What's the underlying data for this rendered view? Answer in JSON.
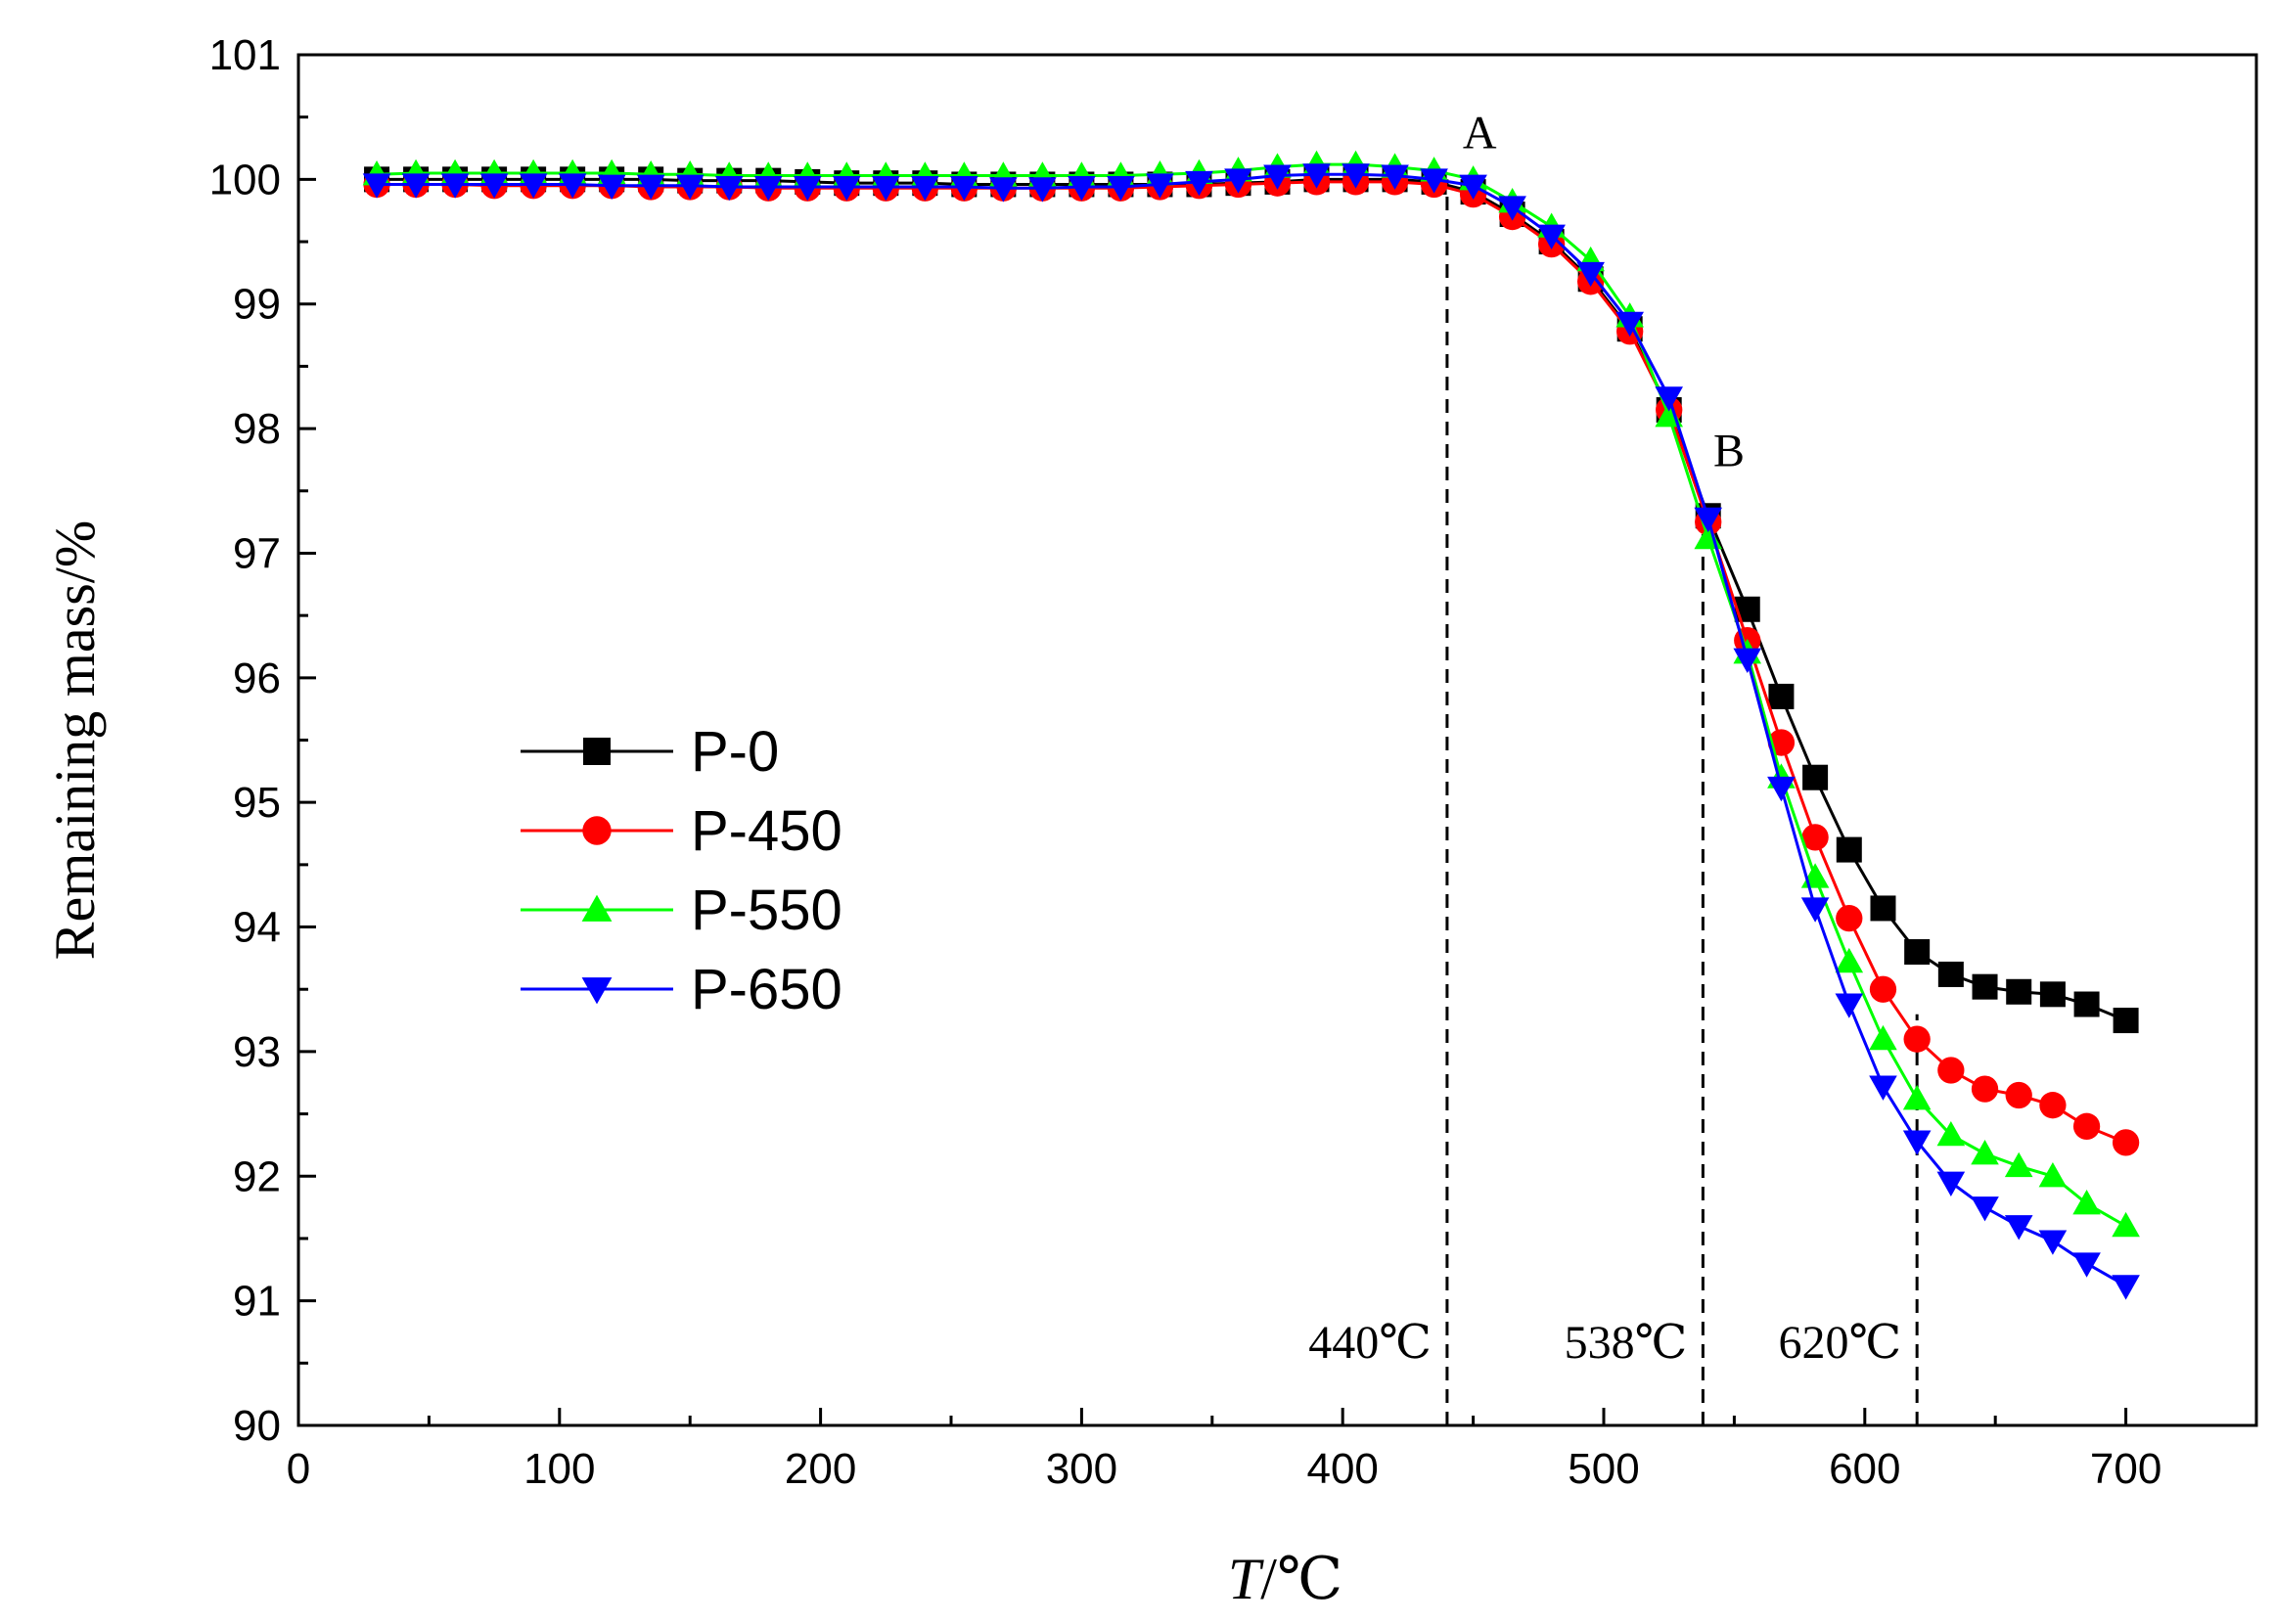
{
  "chart_data": {
    "type": "line",
    "xlabel": "T/℃",
    "xlabel_italic": "T",
    "xlabel_unit": "/℃",
    "ylabel": "Remaining mass/%",
    "xlim": [
      0,
      750
    ],
    "ylim": [
      90,
      101
    ],
    "xticks": [
      0,
      100,
      200,
      300,
      400,
      500,
      600,
      700
    ],
    "yticks": [
      90,
      91,
      92,
      93,
      94,
      95,
      96,
      97,
      98,
      99,
      100,
      101
    ],
    "legend_position": "center-left",
    "vlines": [
      {
        "x": 440,
        "label": "440℃",
        "top_y": 100.0
      },
      {
        "x": 538,
        "label": "538℃",
        "top_y": 97.3
      },
      {
        "x": 620,
        "label": "620℃",
        "top_y": 93.3
      }
    ],
    "point_annotations": [
      {
        "text": "A",
        "x": 446,
        "y": 100.25
      },
      {
        "text": "B",
        "x": 542,
        "y": 97.7
      }
    ],
    "x": [
      30,
      43,
      56,
      69,
      82,
      95,
      108,
      121,
      134,
      147,
      160,
      173,
      186,
      199,
      212,
      225,
      238,
      251,
      264,
      277,
      290,
      303,
      316,
      329,
      342,
      355,
      368,
      381,
      394,
      407,
      420,
      433,
      446,
      459,
      472,
      485,
      498,
      511,
      524,
      537,
      550,
      563,
      576,
      589,
      602,
      615,
      628,
      641,
      654,
      667,
      680,
      693
    ],
    "series": [
      {
        "name": "P-0",
        "color": "#000000",
        "marker": "square",
        "x": [
          30,
          45,
          60,
          75,
          90,
          105,
          120,
          135,
          150,
          165,
          180,
          195,
          210,
          225,
          240,
          255,
          270,
          285,
          300,
          315,
          330,
          345,
          360,
          375,
          390,
          405,
          420,
          435,
          450,
          465,
          480,
          495,
          510,
          525,
          540,
          555,
          568,
          581,
          594,
          607,
          620,
          633,
          646,
          659,
          672,
          685,
          700
        ],
        "values": [
          100.0,
          100.0,
          100.0,
          100.0,
          100.0,
          100.0,
          100.0,
          100.0,
          99.99,
          99.99,
          99.99,
          99.98,
          99.97,
          99.97,
          99.97,
          99.96,
          99.96,
          99.96,
          99.96,
          99.96,
          99.96,
          99.96,
          99.97,
          99.98,
          100.0,
          100.0,
          100.0,
          99.98,
          99.9,
          99.72,
          99.5,
          99.2,
          98.8,
          98.15,
          97.3,
          96.55,
          95.85,
          95.2,
          94.62,
          94.15,
          93.8,
          93.62,
          93.52,
          93.48,
          93.46,
          93.38,
          93.25
        ]
      },
      {
        "name": "P-450",
        "color": "#ff0000",
        "marker": "circle",
        "x": [
          30,
          45,
          60,
          75,
          90,
          105,
          120,
          135,
          150,
          165,
          180,
          195,
          210,
          225,
          240,
          255,
          270,
          285,
          300,
          315,
          330,
          345,
          360,
          375,
          390,
          405,
          420,
          435,
          450,
          465,
          480,
          495,
          510,
          525,
          540,
          555,
          568,
          581,
          594,
          607,
          620,
          633,
          646,
          659,
          672,
          685,
          700
        ],
        "values": [
          99.96,
          99.96,
          99.96,
          99.95,
          99.95,
          99.95,
          99.95,
          99.94,
          99.94,
          99.94,
          99.93,
          99.93,
          99.93,
          99.93,
          99.93,
          99.93,
          99.93,
          99.93,
          99.93,
          99.93,
          99.94,
          99.95,
          99.96,
          99.97,
          99.98,
          99.98,
          99.98,
          99.96,
          99.88,
          99.7,
          99.48,
          99.18,
          98.78,
          98.15,
          97.25,
          96.3,
          95.48,
          94.72,
          94.07,
          93.5,
          93.1,
          92.85,
          92.7,
          92.65,
          92.57,
          92.4,
          92.27
        ]
      },
      {
        "name": "P-550",
        "color": "#00ff00",
        "marker": "triangle-up",
        "x": [
          30,
          45,
          60,
          75,
          90,
          105,
          120,
          135,
          150,
          165,
          180,
          195,
          210,
          225,
          240,
          255,
          270,
          285,
          300,
          315,
          330,
          345,
          360,
          375,
          390,
          405,
          420,
          435,
          450,
          465,
          480,
          495,
          510,
          525,
          540,
          555,
          568,
          581,
          594,
          607,
          620,
          633,
          646,
          659,
          672,
          685,
          700
        ],
        "values": [
          100.04,
          100.05,
          100.05,
          100.05,
          100.05,
          100.05,
          100.05,
          100.04,
          100.04,
          100.03,
          100.03,
          100.03,
          100.03,
          100.03,
          100.03,
          100.03,
          100.03,
          100.03,
          100.03,
          100.03,
          100.04,
          100.05,
          100.07,
          100.1,
          100.12,
          100.12,
          100.1,
          100.07,
          100.0,
          99.82,
          99.62,
          99.35,
          98.9,
          98.1,
          97.12,
          96.2,
          95.2,
          94.4,
          93.72,
          93.1,
          92.62,
          92.33,
          92.18,
          92.08,
          92.0,
          91.78,
          91.6
        ]
      },
      {
        "name": "P-650",
        "color": "#0000ff",
        "marker": "triangle-down",
        "x": [
          30,
          45,
          60,
          75,
          90,
          105,
          120,
          135,
          150,
          165,
          180,
          195,
          210,
          225,
          240,
          255,
          270,
          285,
          300,
          315,
          330,
          345,
          360,
          375,
          390,
          405,
          420,
          435,
          450,
          465,
          480,
          495,
          510,
          525,
          540,
          555,
          568,
          581,
          594,
          607,
          620,
          633,
          646,
          659,
          672,
          685,
          700
        ],
        "values": [
          99.96,
          99.96,
          99.96,
          99.96,
          99.96,
          99.96,
          99.95,
          99.95,
          99.95,
          99.94,
          99.94,
          99.94,
          99.94,
          99.94,
          99.94,
          99.94,
          99.93,
          99.93,
          99.94,
          99.94,
          99.96,
          99.98,
          100.0,
          100.03,
          100.04,
          100.04,
          100.03,
          100.0,
          99.95,
          99.78,
          99.55,
          99.25,
          98.85,
          98.25,
          97.28,
          96.15,
          95.12,
          94.15,
          93.38,
          92.72,
          92.28,
          91.95,
          91.75,
          91.6,
          91.48,
          91.3,
          91.12
        ]
      }
    ]
  }
}
